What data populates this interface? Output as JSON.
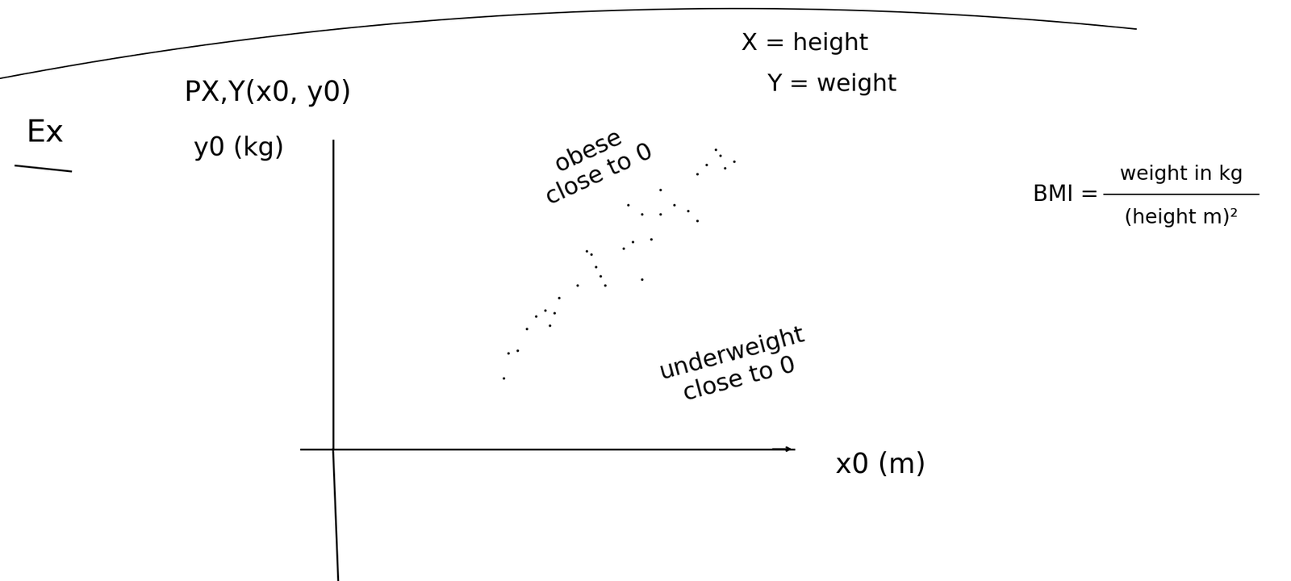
{
  "header": {
    "label": "Ex"
  },
  "chart_data": {
    "type": "scatter",
    "title": "PX,Y(x0, y0)",
    "x_label": "x0 (m)",
    "y_label": "y0 (kg)",
    "x": [
      3.7,
      3.8,
      4.0,
      4.2,
      4.4,
      4.6,
      4.7,
      4.8,
      4.9,
      5.3,
      5.5,
      5.6,
      5.7,
      5.8,
      5.9,
      6.3,
      6.5,
      6.7,
      6.9,
      7.1,
      7.1,
      7.4,
      7.7,
      7.9,
      7.9,
      8.1,
      8.3,
      8.4,
      8.5,
      8.7,
      6.4,
      6.7
    ],
    "values": [
      2.3,
      3.1,
      3.2,
      3.9,
      4.3,
      4.5,
      4.0,
      4.4,
      4.9,
      5.3,
      6.4,
      6.3,
      5.9,
      5.6,
      5.3,
      6.5,
      6.7,
      5.5,
      6.8,
      8.4,
      7.6,
      7.9,
      7.7,
      7.4,
      8.9,
      9.2,
      9.7,
      9.5,
      9.1,
      9.3,
      7.9,
      7.6
    ],
    "xlim": [
      0,
      10
    ],
    "ylim": [
      0,
      10
    ],
    "xticks": [],
    "yticks": [],
    "tick_labels": false,
    "color": "#000000",
    "marker": "dot",
    "annotations": [
      "X = height",
      "Y = weight",
      "obese\nclose to 0",
      "underweight\nclose to 0"
    ]
  },
  "formula": {
    "label": "BMI =",
    "numerator": "weight in kg",
    "denominator": "(height m)²"
  }
}
